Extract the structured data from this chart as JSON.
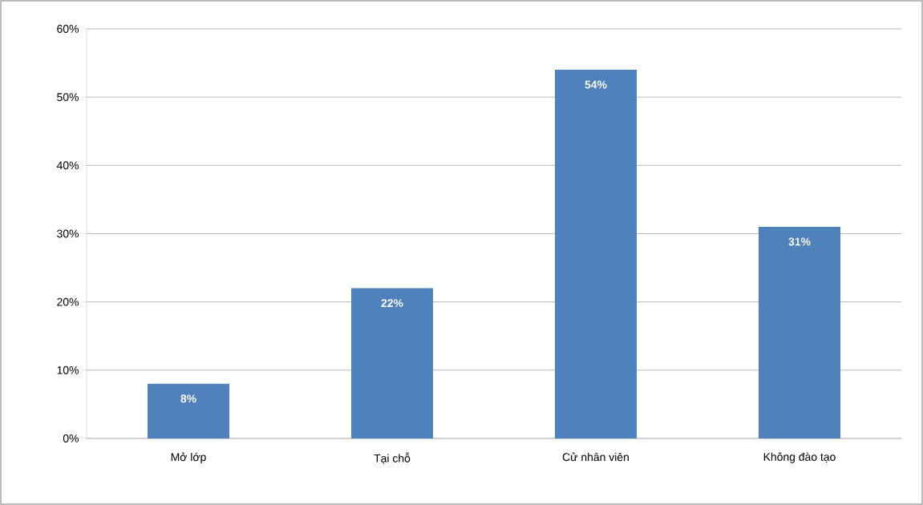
{
  "chart_data": {
    "type": "bar",
    "categories": [
      "Mở lớp",
      "Tại chỗ",
      "Cử nhân viên",
      "Không đào tạo"
    ],
    "values": [
      8,
      22,
      54,
      31
    ],
    "value_labels": [
      "8%",
      "22%",
      "54%",
      "31%"
    ],
    "color": "#4f81bd",
    "ylim": [
      0,
      60
    ],
    "yticks": [
      {
        "value": 0,
        "label": "0%"
      },
      {
        "value": 10,
        "label": "10%"
      },
      {
        "value": 20,
        "label": "20%"
      },
      {
        "value": 30,
        "label": "30%"
      },
      {
        "value": 40,
        "label": "40%"
      },
      {
        "value": 50,
        "label": "50%"
      },
      {
        "value": 60,
        "label": "60%"
      }
    ],
    "grid": "y"
  }
}
